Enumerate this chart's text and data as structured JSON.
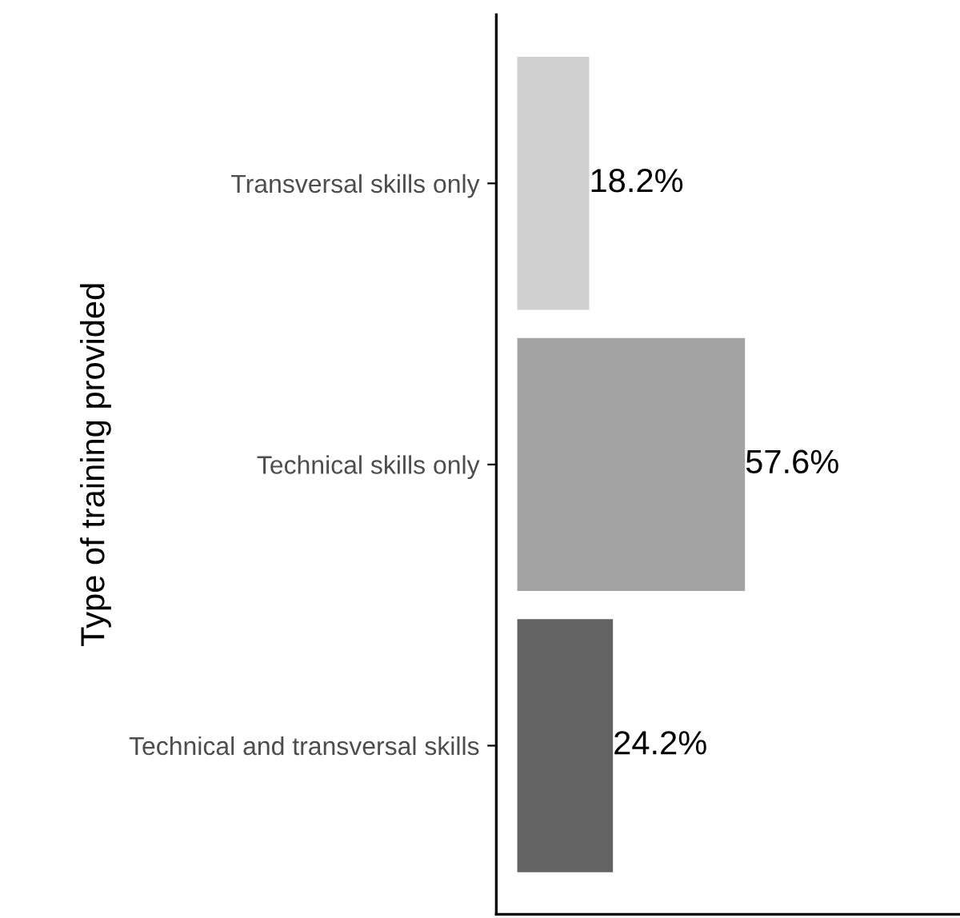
{
  "chart_data": {
    "type": "bar",
    "orientation": "horizontal",
    "ylabel": "Type of training provided",
    "categories": [
      "Transversal skills only",
      "Technical skills only",
      "Technical and transversal skills"
    ],
    "values": [
      18.2,
      57.6,
      24.2
    ],
    "colors": [
      "#d0d0d0",
      "#a3a3a3",
      "#636363"
    ],
    "value_labels": [
      "18.2%",
      "57.6%",
      "24.2%"
    ],
    "xlim": [
      -5.3,
      112
    ],
    "tick_labels": "y",
    "grid": false,
    "legend": false
  }
}
